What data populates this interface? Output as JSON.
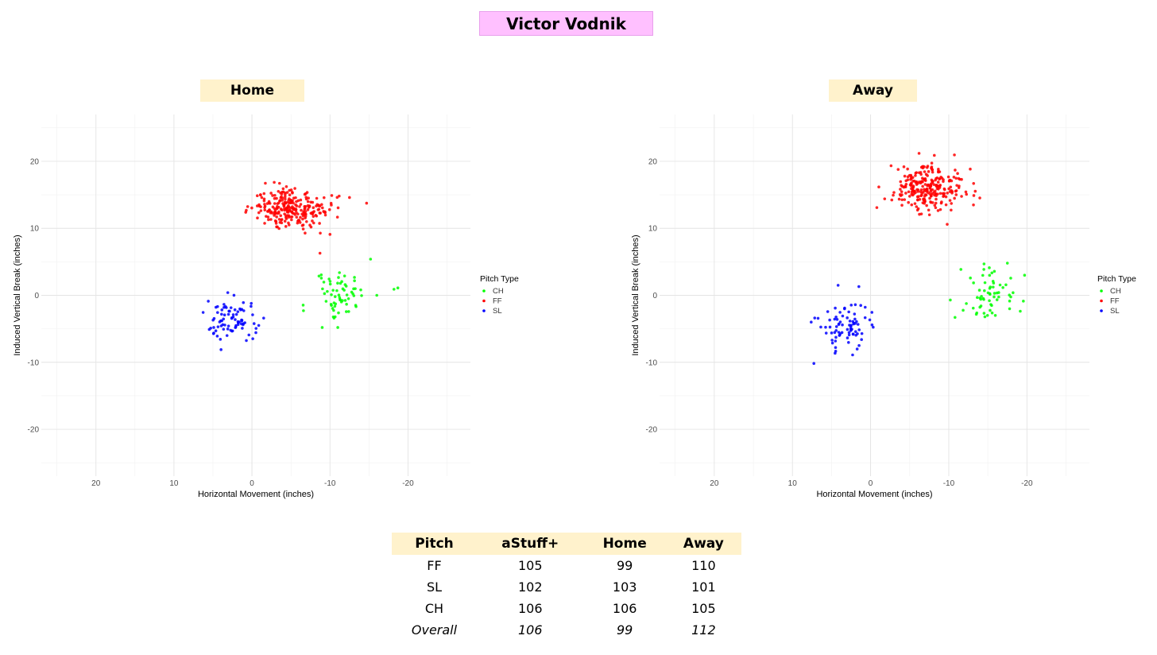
{
  "page_title": "Victor Vodnik",
  "legend_title": "Pitch Type",
  "colors": {
    "CH": "#00ff00",
    "FF": "#ff0000",
    "SL": "#0000ff"
  },
  "chart_data": [
    {
      "type": "scatter",
      "title": "Home",
      "xlabel": "Horizontal Movement (inches)",
      "ylabel": "Induced Vertical Break (inches)",
      "x_reversed": true,
      "xlim": [
        27,
        -28
      ],
      "ylim": [
        -27,
        27
      ],
      "x_ticks": [
        20,
        10,
        0,
        -10,
        -20
      ],
      "y_ticks": [
        20,
        10,
        0,
        -10,
        -20
      ],
      "grid": true,
      "legend_position": "right",
      "series": [
        {
          "name": "CH",
          "center": [
            -11,
            0
          ],
          "spread": [
            1.6,
            2.0
          ],
          "count": 60,
          "extra": [
            [
              -15.2,
              5.4
            ],
            [
              -18.2,
              0.9
            ],
            [
              -18.7,
              1.1
            ],
            [
              -16,
              0
            ],
            [
              -6.6,
              -2.3
            ],
            [
              -9,
              -4.8
            ],
            [
              -11,
              -4.8
            ]
          ]
        },
        {
          "name": "FF",
          "center": [
            -5,
            13
          ],
          "spread": [
            2.4,
            1.6
          ],
          "count": 260,
          "extra": [
            [
              0.8,
              12.4
            ],
            [
              -12.5,
              14.6
            ],
            [
              -10,
              9.1
            ]
          ]
        },
        {
          "name": "SL",
          "center": [
            2.5,
            -3.8
          ],
          "spread": [
            1.6,
            1.5
          ],
          "count": 80,
          "extra": [
            [
              4.9,
              -4.8
            ],
            [
              -1.5,
              -3.4
            ],
            [
              3.1,
              0.4
            ]
          ]
        }
      ]
    },
    {
      "type": "scatter",
      "title": "Away",
      "xlabel": "Horizontal Movement (inches)",
      "ylabel": "Induced Vertical Break (inches)",
      "x_reversed": true,
      "xlim": [
        27,
        -28
      ],
      "ylim": [
        -27,
        27
      ],
      "x_ticks": [
        20,
        10,
        0,
        -10,
        -20
      ],
      "y_ticks": [
        20,
        10,
        0,
        -10,
        -20
      ],
      "grid": true,
      "legend_position": "right",
      "series": [
        {
          "name": "CH",
          "center": [
            -15.5,
            0
          ],
          "spread": [
            1.8,
            2.0
          ],
          "count": 60,
          "extra": [
            [
              -19.7,
              3.0
            ],
            [
              -10.2,
              -0.7
            ],
            [
              -10.8,
              -3.3
            ],
            [
              -17.5,
              4.8
            ]
          ]
        },
        {
          "name": "FF",
          "center": [
            -7.5,
            16
          ],
          "spread": [
            2.5,
            1.6
          ],
          "count": 260,
          "extra": [
            [
              -0.8,
              13.1
            ],
            [
              -9.8,
              10.6
            ],
            [
              -6.2,
              21.2
            ],
            [
              -1.8,
              14.4
            ]
          ]
        },
        {
          "name": "SL",
          "center": [
            3.2,
            -4.5
          ],
          "spread": [
            1.5,
            1.7
          ],
          "count": 80,
          "extra": [
            [
              7.6,
              -4.0
            ],
            [
              2.3,
              -8.9
            ],
            [
              1.5,
              1.3
            ]
          ]
        }
      ]
    }
  ],
  "table": {
    "headers": [
      "Pitch",
      "aStuff+",
      "Home",
      "Away"
    ],
    "rows": [
      [
        "FF",
        "105",
        "99",
        "110"
      ],
      [
        "SL",
        "102",
        "103",
        "101"
      ],
      [
        "CH",
        "106",
        "106",
        "105"
      ]
    ],
    "overall": [
      "Overall",
      "106",
      "99",
      "112"
    ]
  }
}
